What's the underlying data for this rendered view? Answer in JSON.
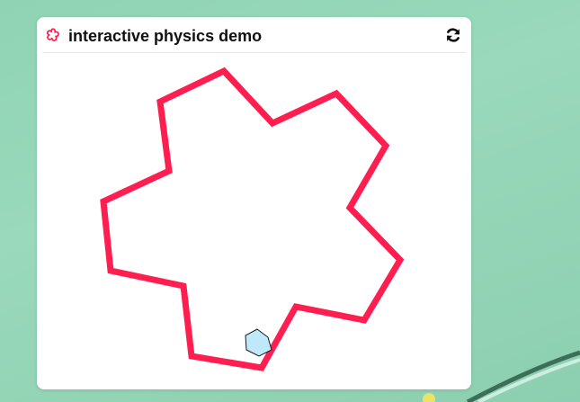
{
  "widget": {
    "title": "interactive physics demo",
    "icon": "flower-icon",
    "refresh_icon": "refresh-icon"
  },
  "colors": {
    "accent": "#ff1e50",
    "shape_fill": "#bfe9fb",
    "shape_stroke": "#1a1a1a",
    "background": "#8fd3b4"
  }
}
